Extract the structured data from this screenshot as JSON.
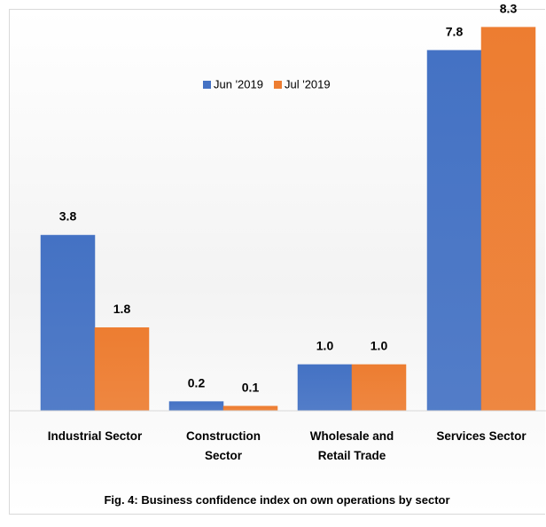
{
  "chart_data": {
    "type": "bar",
    "title": "Fig. 4: Business confidence index on own operations  by sector",
    "categories": [
      "Industrial Sector",
      "Construction Sector",
      "Wholesale and Retail Trade",
      "Services Sector"
    ],
    "series": [
      {
        "name": "Jun '2019",
        "color": "#4472c4",
        "values": [
          3.8,
          0.2,
          1.0,
          7.8
        ],
        "value_labels": [
          "3.8",
          "0.2",
          "1.0",
          "7.8"
        ]
      },
      {
        "name": "Jul '2019",
        "color": "#ed7d31",
        "values": [
          1.8,
          0.1,
          1.0,
          8.3
        ],
        "value_labels": [
          "1.8",
          "0.1",
          "1.0",
          "8.3"
        ]
      }
    ],
    "ylim": [
      0,
      8.6
    ],
    "legend": "top"
  }
}
